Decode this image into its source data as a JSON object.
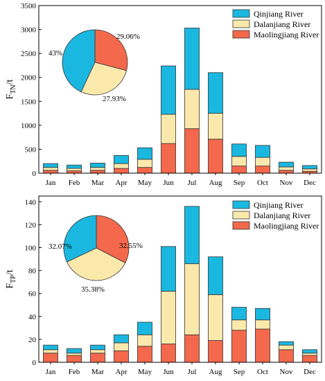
{
  "colors": {
    "qinjiang": "#1ab8e0",
    "dalanjiang": "#fbe9ac",
    "maolingjiang": "#f4684c"
  },
  "chart_data": [
    {
      "type": "bar",
      "stacked": true,
      "ylabel": "F",
      "ylabel_sub": "TN",
      "ylabel_unit": "/t",
      "ylim": [
        0,
        3500
      ],
      "yticks": [
        0,
        500,
        1000,
        1500,
        2000,
        2500,
        3000,
        3500
      ],
      "categories": [
        "Jan",
        "Feb",
        "Mar",
        "Apr",
        "May",
        "Jun",
        "Jul",
        "Aug",
        "Sep",
        "Oct",
        "Nov",
        "Dec"
      ],
      "legend_position": "top-right",
      "series": [
        {
          "name": "Maolingjiang River",
          "values": [
            60,
            50,
            60,
            100,
            120,
            620,
            930,
            710,
            150,
            150,
            60,
            40
          ]
        },
        {
          "name": "Dalanjiang River",
          "values": [
            60,
            50,
            60,
            100,
            170,
            610,
            820,
            540,
            200,
            180,
            70,
            50
          ]
        },
        {
          "name": "Qinjiang River",
          "values": [
            80,
            70,
            90,
            170,
            240,
            1010,
            1280,
            850,
            260,
            250,
            100,
            70
          ]
        }
      ],
      "pie": {
        "labels": [
          "29.06%",
          "27.93%",
          "43%"
        ],
        "values": [
          29.06,
          27.93,
          43.01
        ]
      }
    },
    {
      "type": "bar",
      "stacked": true,
      "ylabel": "F",
      "ylabel_sub": "TP",
      "ylabel_unit": "/t",
      "ylim": [
        0,
        145
      ],
      "yticks": [
        0,
        20,
        40,
        60,
        80,
        100,
        120,
        140
      ],
      "categories": [
        "Jan",
        "Feb",
        "Mar",
        "Apr",
        "May",
        "Jun",
        "Jul",
        "Aug",
        "Sep",
        "Oct",
        "Nov",
        "Dec"
      ],
      "legend_position": "top-right",
      "series": [
        {
          "name": "Maolingjiang River",
          "values": [
            8,
            6,
            8,
            10,
            14,
            16,
            24,
            19,
            28,
            29,
            11,
            6
          ]
        },
        {
          "name": "Dalanjiang River",
          "values": [
            3,
            2,
            3,
            7,
            10,
            46,
            62,
            40,
            9,
            8,
            4,
            2
          ]
        },
        {
          "name": "Qinjiang River",
          "values": [
            4,
            4,
            4,
            7,
            11,
            39,
            50,
            33,
            11,
            10,
            3,
            3
          ]
        }
      ],
      "pie": {
        "labels": [
          "32.55%",
          "35.38%",
          "32.07%"
        ],
        "values": [
          32.55,
          35.38,
          32.07
        ]
      }
    }
  ]
}
